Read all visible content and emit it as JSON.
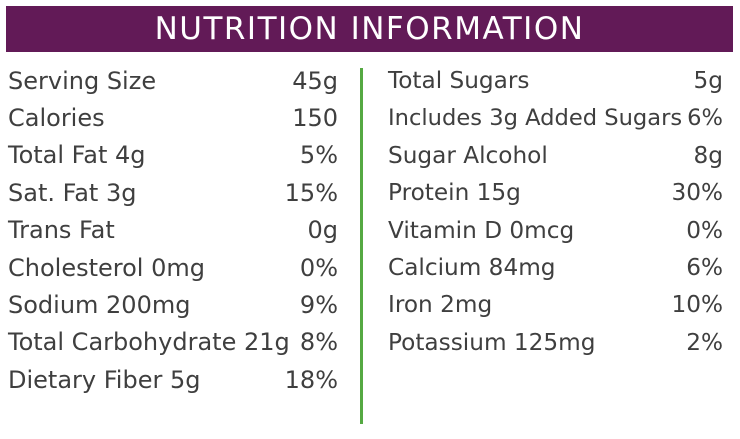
{
  "title": "NUTRITION INFORMATION",
  "colors": {
    "header_background": "#621a57",
    "header_text": "#ffffff",
    "body_text": "#3f3f3f",
    "divider": "#55a942"
  },
  "left_column": [
    {
      "label": "Serving Size",
      "value": "45g"
    },
    {
      "label": "Calories",
      "value": "150"
    },
    {
      "label": "Total Fat 4g",
      "value": "5%"
    },
    {
      "label": "Sat. Fat 3g",
      "value": "15%"
    },
    {
      "label": "Trans Fat",
      "value": "0g"
    },
    {
      "label": "Cholesterol 0mg",
      "value": "0%"
    },
    {
      "label": "Sodium 200mg",
      "value": "9%"
    },
    {
      "label": "Total Carbohydrate 21g",
      "value": "8%"
    },
    {
      "label": "Dietary Fiber 5g",
      "value": "18%"
    }
  ],
  "right_column": [
    {
      "label": "Total Sugars",
      "value": "5g"
    },
    {
      "label": "Includes 3g Added Sugars",
      "value": "6%"
    },
    {
      "label": "Sugar Alcohol",
      "value": "8g"
    },
    {
      "label": "Protein 15g",
      "value": "30%"
    },
    {
      "label": "Vitamin D 0mcg",
      "value": "0%"
    },
    {
      "label": "Calcium 84mg",
      "value": "6%"
    },
    {
      "label": "Iron 2mg",
      "value": "10%"
    },
    {
      "label": "Potassium 125mg",
      "value": "2%"
    }
  ]
}
